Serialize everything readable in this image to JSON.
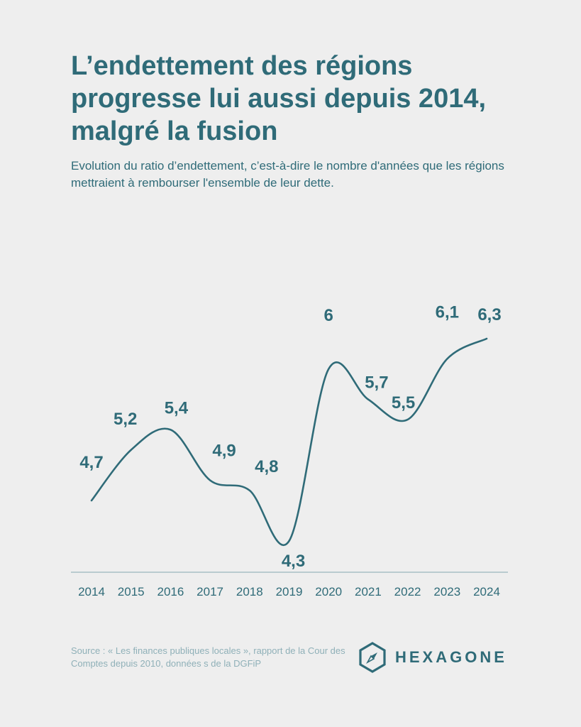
{
  "header": {
    "title": "L’endettement des régions progresse lui aussi depuis 2014, malgré la fusion",
    "subtitle": "Evolution du ratio d’endettement, c’est-à-dire le nombre d'années que les régions mettraient à rembourser l'ensemble de leur dette."
  },
  "chart_data": {
    "type": "line",
    "categories": [
      "2014",
      "2015",
      "2016",
      "2017",
      "2018",
      "2019",
      "2020",
      "2021",
      "2022",
      "2023",
      "2024"
    ],
    "values": [
      4.7,
      5.2,
      5.4,
      4.9,
      4.8,
      4.3,
      6,
      5.7,
      5.5,
      6.1,
      6.3
    ],
    "value_labels": [
      "4,7",
      "5,2",
      "5,4",
      "4,9",
      "4,8",
      "4,3",
      "6",
      "5,7",
      "5,5",
      "6,1",
      "6,3"
    ],
    "title": "",
    "xlabel": "",
    "ylabel": "",
    "ylim": [
      4.0,
      6.5
    ],
    "grid": false,
    "line_color": "#2f6b78"
  },
  "footer": {
    "source": "Source : « Les finances publiques locales », rapport de la Cour des Comptes depuis 2010, données s de la DGFiP",
    "logo_text": "HEXAGONE",
    "logo_icon": "compass-hexagon-icon"
  },
  "colors": {
    "background": "#eeeeee",
    "primary": "#2f6b78",
    "source_text": "#8fb0b8"
  }
}
